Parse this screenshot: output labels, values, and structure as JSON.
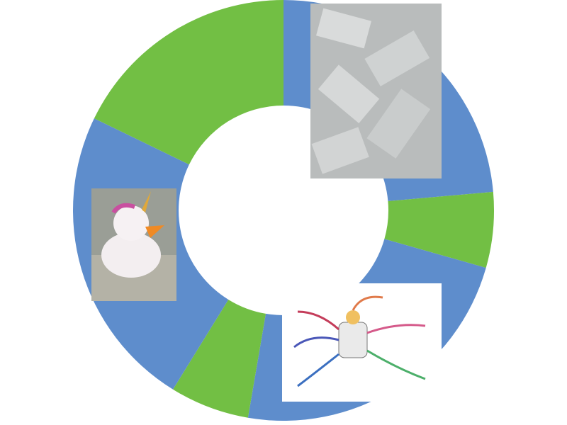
{
  "chart_data": {
    "type": "donut",
    "categories": [
      null,
      null,
      null,
      null,
      null,
      null
    ],
    "values": [
      23.6,
      5.8,
      23.3,
      6.1,
      23.4,
      17.8
    ],
    "colors": [
      "#5e8dcc",
      "#72bf44",
      "#5e8dcc",
      "#72bf44",
      "#5e8dcc",
      "#72bf44"
    ]
  }
}
